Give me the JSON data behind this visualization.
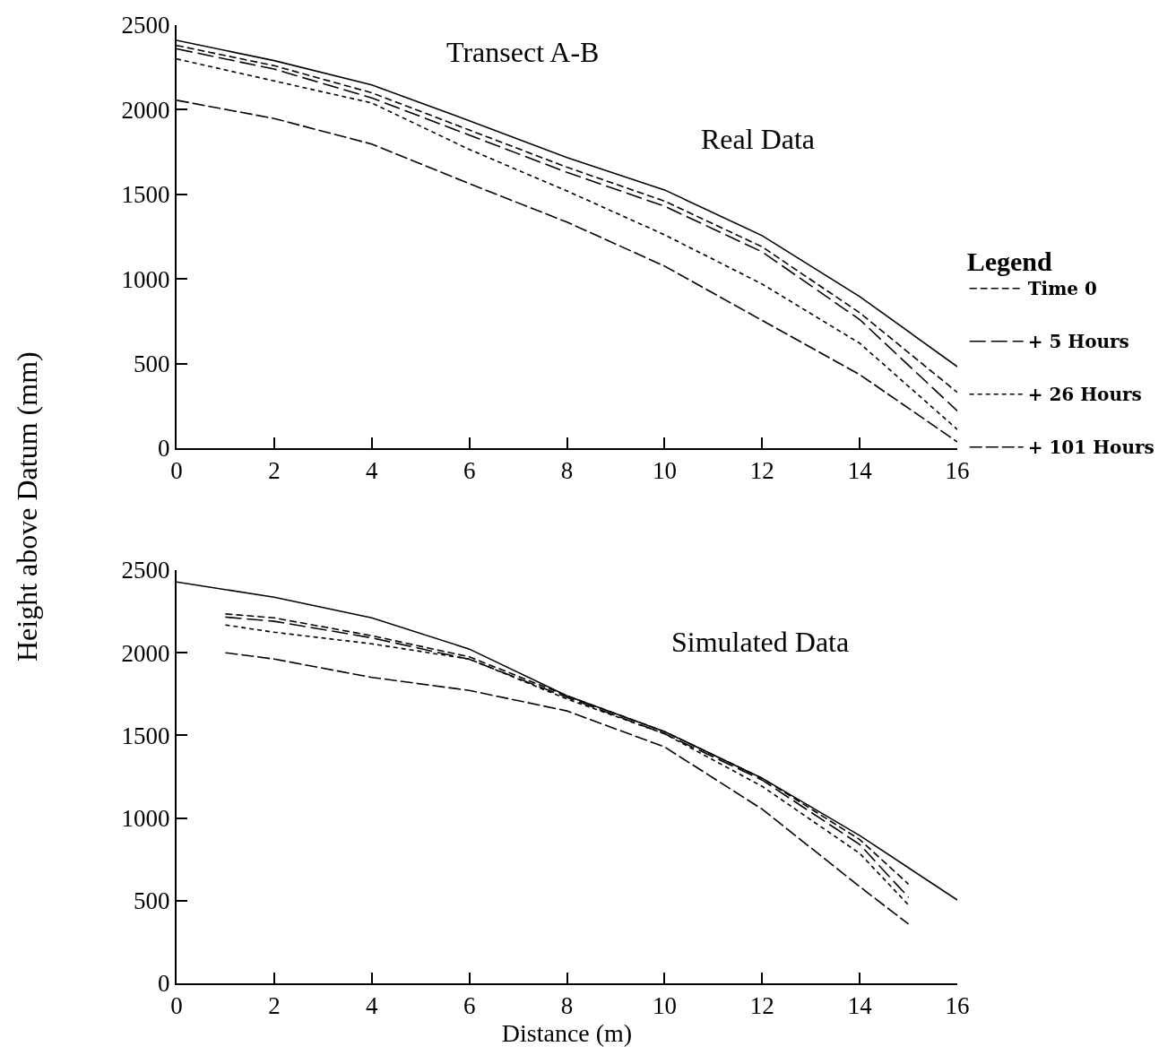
{
  "chart_data": [
    {
      "type": "line",
      "ylabel": "Height above Datum (mm)",
      "legend_title": "Legend",
      "legend": "right",
      "annotations": [
        "Transect A-B",
        "Real Data"
      ],
      "x": [
        0,
        2,
        4,
        6,
        8,
        10,
        12,
        14,
        16
      ],
      "xlim": [
        0,
        16
      ],
      "ylim": [
        0,
        2500
      ],
      "xticks": [
        0,
        2,
        4,
        6,
        8,
        10,
        12,
        14,
        16
      ],
      "yticks": [
        0,
        500,
        1000,
        1500,
        2000,
        2500
      ],
      "series": [
        {
          "color": "#000000",
          "line_style": "solid",
          "values": [
            2410,
            2290,
            2147,
            1935,
            1717,
            1526,
            1256,
            896,
            482
          ]
        },
        {
          "name": "Time 0",
          "color": "#000000",
          "line_style": "dashed",
          "values": [
            2380,
            2260,
            2100,
            1880,
            1660,
            1460,
            1190,
            800,
            330
          ]
        },
        {
          "name": "+ 5 Hours",
          "color": "#000000",
          "line_style": "dashed",
          "values": [
            2360,
            2240,
            2070,
            1850,
            1630,
            1430,
            1160,
            760,
            220
          ]
        },
        {
          "name": "+ 26 Hours",
          "color": "#000000",
          "line_style": "dotted",
          "values": [
            2300,
            2170,
            2040,
            1765,
            1520,
            1261,
            970,
            620,
            111
          ]
        },
        {
          "name": "+ 101 Hours",
          "color": "#000000",
          "line_style": "dashed",
          "values": [
            2056,
            1948,
            1797,
            1563,
            1336,
            1076,
            755,
            435,
            37
          ]
        }
      ]
    },
    {
      "type": "line",
      "xlabel": "Distance (m)",
      "annotations": [
        "Simulated Data"
      ],
      "xlim": [
        0,
        16
      ],
      "ylim": [
        0,
        2500
      ],
      "xticks": [
        0,
        2,
        4,
        6,
        8,
        10,
        12,
        14,
        16
      ],
      "yticks": [
        0,
        500,
        1000,
        1500,
        2000,
        2500
      ],
      "series": [
        {
          "color": "#000000",
          "line_style": "solid",
          "x": [
            0,
            2,
            4,
            6,
            8,
            10,
            12,
            14,
            16
          ],
          "values": [
            2428,
            2336,
            2211,
            2022,
            1740,
            1523,
            1241,
            894,
            504
          ]
        },
        {
          "color": "#000000",
          "line_style": "dashed",
          "x": [
            1,
            2,
            4,
            6,
            8,
            10,
            12,
            14,
            15
          ],
          "values": [
            2235,
            2211,
            2103,
            1975,
            1740,
            1523,
            1241,
            870,
            600
          ]
        },
        {
          "color": "#000000",
          "line_style": "dashed",
          "x": [
            1,
            2,
            4,
            6,
            8,
            10,
            12,
            14,
            15
          ],
          "values": [
            2216,
            2190,
            2090,
            1960,
            1730,
            1510,
            1230,
            840,
            520
          ]
        },
        {
          "color": "#000000",
          "line_style": "dotted",
          "x": [
            1,
            2,
            4,
            6,
            8,
            10,
            12,
            14,
            15
          ],
          "values": [
            2168,
            2124,
            2054,
            1962,
            1720,
            1510,
            1192,
            786,
            474
          ]
        },
        {
          "color": "#000000",
          "line_style": "dashed",
          "x": [
            1,
            2,
            4,
            6,
            8,
            10,
            12,
            14,
            15
          ],
          "values": [
            2000,
            1962,
            1851,
            1772,
            1648,
            1430,
            1054,
            585,
            358
          ]
        }
      ]
    }
  ]
}
